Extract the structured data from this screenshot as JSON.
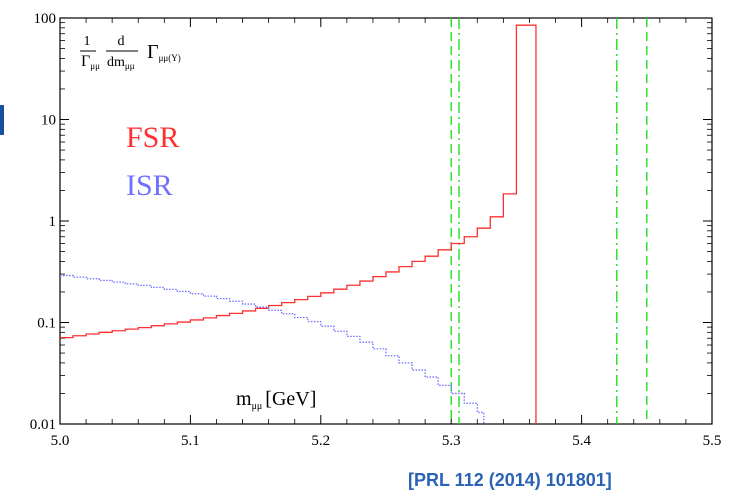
{
  "chart_data": {
    "type": "line",
    "xlabel_main": "m",
    "xlabel_sub": "μμ",
    "xlabel_unit": "[GeV]",
    "ylabel": {
      "frac1_num": "1",
      "frac1_den_main": "Γ",
      "frac1_den_sub": "μμ",
      "frac2_num": "d",
      "frac2_den_main": "dm",
      "frac2_den_sub": "μμ",
      "gamma_main": "Γ",
      "gamma_sub": "μμ(Υ)"
    },
    "xlim": [
      5.0,
      5.5
    ],
    "ylim": [
      0.01,
      100
    ],
    "yscale": "log",
    "x_ticks": [
      "5.0",
      "5.1",
      "5.2",
      "5.3",
      "5.4",
      "5.5"
    ],
    "x_tick_values": [
      5.0,
      5.1,
      5.2,
      5.3,
      5.4,
      5.5
    ],
    "y_ticks": [
      "0.01",
      "0.1",
      "1",
      "10",
      "100"
    ],
    "y_tick_values": [
      0.01,
      0.1,
      1,
      10,
      100
    ],
    "colors": {
      "fsr": "#ff3030",
      "isr": "#6f6fff",
      "green": "#22dd22",
      "citation": "#2a63b6"
    },
    "series": [
      {
        "name": "FSR",
        "style": "step",
        "x": [
          5.0,
          5.01,
          5.02,
          5.03,
          5.04,
          5.05,
          5.06,
          5.07,
          5.08,
          5.09,
          5.1,
          5.11,
          5.12,
          5.13,
          5.14,
          5.15,
          5.16,
          5.17,
          5.18,
          5.19,
          5.2,
          5.21,
          5.22,
          5.23,
          5.24,
          5.25,
          5.26,
          5.27,
          5.28,
          5.29,
          5.3,
          5.31,
          5.32,
          5.33,
          5.34,
          5.35,
          5.36,
          5.365
        ],
        "y": [
          0.071,
          0.074,
          0.077,
          0.08,
          0.083,
          0.086,
          0.089,
          0.093,
          0.097,
          0.101,
          0.106,
          0.111,
          0.117,
          0.123,
          0.13,
          0.138,
          0.147,
          0.157,
          0.168,
          0.181,
          0.196,
          0.213,
          0.233,
          0.256,
          0.283,
          0.315,
          0.355,
          0.4,
          0.45,
          0.52,
          0.6,
          0.7,
          0.85,
          1.1,
          1.85,
          85,
          85,
          0.01
        ]
      },
      {
        "name": "ISR",
        "style": "step",
        "x": [
          5.0,
          5.01,
          5.02,
          5.03,
          5.04,
          5.05,
          5.06,
          5.07,
          5.08,
          5.09,
          5.1,
          5.11,
          5.12,
          5.13,
          5.14,
          5.15,
          5.16,
          5.17,
          5.18,
          5.19,
          5.2,
          5.21,
          5.22,
          5.23,
          5.24,
          5.25,
          5.26,
          5.27,
          5.28,
          5.29,
          5.3,
          5.31,
          5.32,
          5.325
        ],
        "y": [
          0.29,
          0.28,
          0.27,
          0.26,
          0.25,
          0.24,
          0.232,
          0.222,
          0.212,
          0.202,
          0.192,
          0.182,
          0.172,
          0.162,
          0.152,
          0.142,
          0.132,
          0.122,
          0.112,
          0.102,
          0.092,
          0.082,
          0.073,
          0.064,
          0.055,
          0.047,
          0.04,
          0.034,
          0.029,
          0.024,
          0.02,
          0.016,
          0.013,
          0.01
        ]
      }
    ],
    "vertical_lines": [
      {
        "x": 5.3,
        "style": "dash"
      },
      {
        "x": 5.306,
        "style": "dashdot"
      },
      {
        "x": 5.427,
        "style": "dashdot"
      },
      {
        "x": 5.45,
        "style": "dash"
      }
    ],
    "legend": [
      "FSR",
      "ISR"
    ],
    "legend_placement": "left",
    "grid": false
  },
  "citation": "[PRL 112 (2014) 101801]"
}
